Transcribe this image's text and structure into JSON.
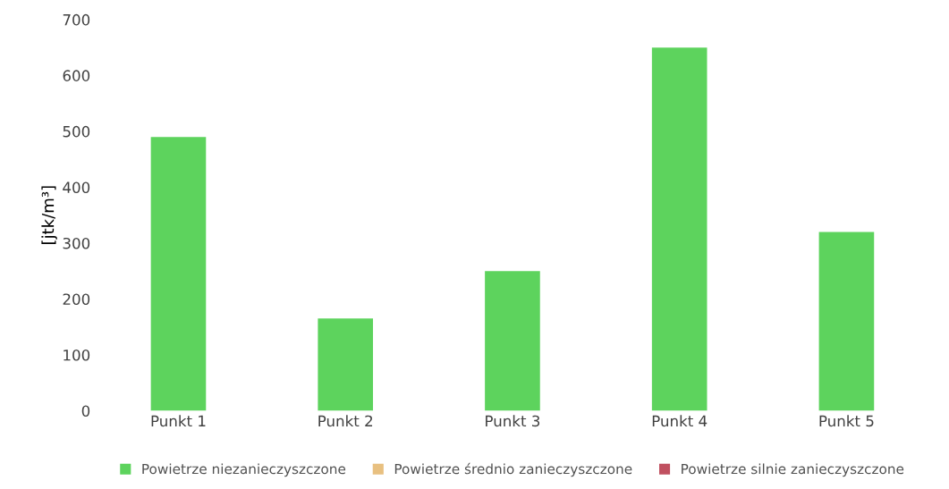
{
  "chart_data": {
    "type": "bar",
    "ylabel": "[jtk/m³]",
    "categories": [
      "Punkt 1",
      "Punkt 2",
      "Punkt 3",
      "Punkt 4",
      "Punkt 5"
    ],
    "series": [
      {
        "name": "Powietrze niezanieczyszczone",
        "color": "#5dd35d",
        "values": [
          490,
          165,
          250,
          650,
          320
        ]
      },
      {
        "name": "Powietrze średnio zanieczyszczone",
        "color": "#e8c080",
        "values": [
          null,
          null,
          null,
          null,
          null
        ]
      },
      {
        "name": "Powietrze silnie zanieczyszczone",
        "color": "#c05060",
        "values": [
          null,
          null,
          null,
          null,
          null
        ]
      }
    ],
    "ylim": [
      0,
      700
    ],
    "yticks": [
      0,
      100,
      200,
      300,
      400,
      500,
      600,
      700
    ],
    "grid": false,
    "legend": "bottom"
  }
}
